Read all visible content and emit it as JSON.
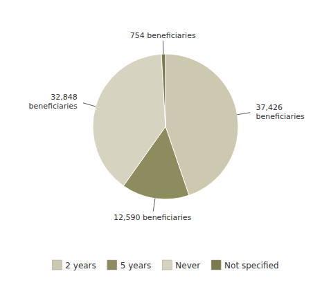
{
  "chart_data": {
    "type": "pie",
    "categories": [
      "2 years",
      "5 years",
      "Never",
      "Not specified"
    ],
    "values": [
      37426,
      12590,
      32848,
      754
    ],
    "colors": [
      "#ccc9b0",
      "#8c8c5e",
      "#d6d4c0",
      "#7a7a4e"
    ],
    "value_labels": [
      "37,426\nbeneficiaries",
      "12,590 beneficiaries",
      "32,848\nbeneficiaries",
      "754 beneficiaries"
    ],
    "data_labels": true,
    "legend": "bottom"
  }
}
